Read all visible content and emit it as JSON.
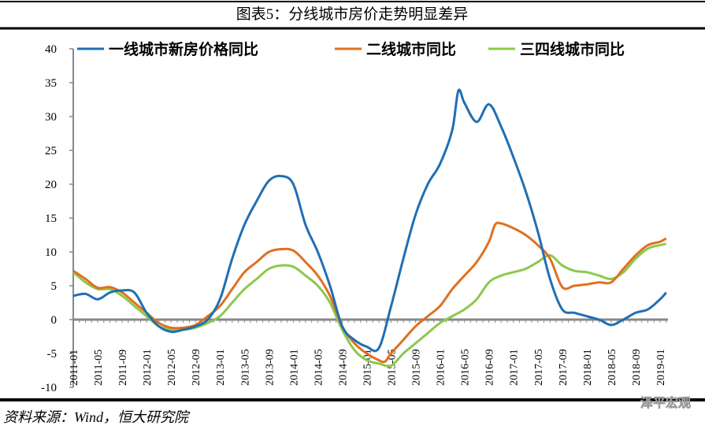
{
  "title": "图表5：分线城市房价走势明显差异",
  "source": "资料来源：Wind，恒大研究院",
  "watermark": "泽平宏观",
  "chart_data": {
    "type": "line",
    "title": "图表5：分线城市房价走势明显差异",
    "xlabel": "",
    "ylabel": "",
    "ylim": [
      -10,
      40
    ],
    "yticks": [
      -10,
      -5,
      0,
      5,
      10,
      15,
      20,
      25,
      30,
      35,
      40
    ],
    "xlim": [
      "2011-01",
      "2019-02"
    ],
    "xticks": [
      "2011-01",
      "2011-05",
      "2011-09",
      "2012-01",
      "2012-05",
      "2012-09",
      "2013-01",
      "2013-05",
      "2013-09",
      "2014-01",
      "2014-05",
      "2014-09",
      "2015-01",
      "2015-05",
      "2015-09",
      "2016-01",
      "2016-05",
      "2016-09",
      "2017-01",
      "2017-05",
      "2017-09",
      "2018-01",
      "2018-05",
      "2018-09",
      "2019-01"
    ],
    "grid": false,
    "legend_position": "top",
    "series": [
      {
        "name": "一线城市新房价格同比",
        "color": "#1f6fb4",
        "points": [
          [
            "2011-01",
            3.5
          ],
          [
            "2011-03",
            3.8
          ],
          [
            "2011-05",
            3.0
          ],
          [
            "2011-07",
            4.0
          ],
          [
            "2011-09",
            4.3
          ],
          [
            "2011-11",
            4.0
          ],
          [
            "2012-01",
            1.0
          ],
          [
            "2012-03",
            -1.0
          ],
          [
            "2012-05",
            -1.8
          ],
          [
            "2012-07",
            -1.5
          ],
          [
            "2012-09",
            -1.0
          ],
          [
            "2012-11",
            0.0
          ],
          [
            "2013-01",
            3.0
          ],
          [
            "2013-03",
            9.0
          ],
          [
            "2013-05",
            14.0
          ],
          [
            "2013-07",
            17.5
          ],
          [
            "2013-09",
            20.5
          ],
          [
            "2013-11",
            21.2
          ],
          [
            "2014-01",
            20.0
          ],
          [
            "2014-03",
            14.0
          ],
          [
            "2014-05",
            10.0
          ],
          [
            "2014-07",
            5.0
          ],
          [
            "2014-09",
            -1.0
          ],
          [
            "2014-11",
            -3.0
          ],
          [
            "2015-01",
            -4.0
          ],
          [
            "2015-03",
            -4.2
          ],
          [
            "2015-05",
            2.0
          ],
          [
            "2015-07",
            9.0
          ],
          [
            "2015-09",
            15.5
          ],
          [
            "2015-11",
            20.0
          ],
          [
            "2016-01",
            23.0
          ],
          [
            "2016-03",
            28.0
          ],
          [
            "2016-04",
            33.8
          ],
          [
            "2016-05",
            32.0
          ],
          [
            "2016-07",
            29.2
          ],
          [
            "2016-09",
            31.8
          ],
          [
            "2016-11",
            28.5
          ],
          [
            "2017-01",
            24.0
          ],
          [
            "2017-03",
            19.0
          ],
          [
            "2017-05",
            13.0
          ],
          [
            "2017-07",
            6.0
          ],
          [
            "2017-09",
            1.5
          ],
          [
            "2017-11",
            1.0
          ],
          [
            "2018-01",
            0.5
          ],
          [
            "2018-03",
            0.0
          ],
          [
            "2018-05",
            -0.8
          ],
          [
            "2018-07",
            0.0
          ],
          [
            "2018-09",
            1.0
          ],
          [
            "2018-11",
            1.5
          ],
          [
            "2019-01",
            3.0
          ],
          [
            "2019-02",
            4.0
          ]
        ]
      },
      {
        "name": "二线城市同比",
        "color": "#e07020",
        "points": [
          [
            "2011-01",
            7.2
          ],
          [
            "2011-03",
            6.0
          ],
          [
            "2011-05",
            4.7
          ],
          [
            "2011-07",
            4.8
          ],
          [
            "2011-09",
            4.0
          ],
          [
            "2011-11",
            2.5
          ],
          [
            "2012-01",
            1.0
          ],
          [
            "2012-03",
            -0.5
          ],
          [
            "2012-05",
            -1.2
          ],
          [
            "2012-07",
            -1.2
          ],
          [
            "2012-09",
            -0.8
          ],
          [
            "2012-11",
            0.5
          ],
          [
            "2013-01",
            2.0
          ],
          [
            "2013-03",
            4.5
          ],
          [
            "2013-05",
            7.0
          ],
          [
            "2013-07",
            8.5
          ],
          [
            "2013-09",
            10.0
          ],
          [
            "2013-11",
            10.4
          ],
          [
            "2014-01",
            10.2
          ],
          [
            "2014-03",
            8.5
          ],
          [
            "2014-05",
            6.5
          ],
          [
            "2014-07",
            3.5
          ],
          [
            "2014-09",
            -1.0
          ],
          [
            "2014-11",
            -3.5
          ],
          [
            "2015-01",
            -5.0
          ],
          [
            "2015-03",
            -6.0
          ],
          [
            "2015-04",
            -6.2
          ],
          [
            "2015-05",
            -5.0
          ],
          [
            "2015-07",
            -3.0
          ],
          [
            "2015-09",
            -1.0
          ],
          [
            "2015-11",
            0.5
          ],
          [
            "2016-01",
            2.0
          ],
          [
            "2016-03",
            4.5
          ],
          [
            "2016-05",
            6.5
          ],
          [
            "2016-07",
            8.5
          ],
          [
            "2016-09",
            11.5
          ],
          [
            "2016-10",
            14.0
          ],
          [
            "2016-11",
            14.2
          ],
          [
            "2017-01",
            13.5
          ],
          [
            "2017-03",
            12.5
          ],
          [
            "2017-05",
            11.0
          ],
          [
            "2017-07",
            9.0
          ],
          [
            "2017-09",
            4.8
          ],
          [
            "2017-11",
            5.0
          ],
          [
            "2018-01",
            5.2
          ],
          [
            "2018-03",
            5.5
          ],
          [
            "2018-05",
            5.5
          ],
          [
            "2018-07",
            7.5
          ],
          [
            "2018-09",
            9.5
          ],
          [
            "2018-11",
            11.0
          ],
          [
            "2019-01",
            11.5
          ],
          [
            "2019-02",
            12.0
          ]
        ]
      },
      {
        "name": "三四线城市同比",
        "color": "#8cc84b",
        "points": [
          [
            "2011-01",
            7.0
          ],
          [
            "2011-03",
            5.5
          ],
          [
            "2011-05",
            4.5
          ],
          [
            "2011-07",
            4.5
          ],
          [
            "2011-09",
            3.5
          ],
          [
            "2011-11",
            2.0
          ],
          [
            "2012-01",
            0.5
          ],
          [
            "2012-03",
            -1.0
          ],
          [
            "2012-05",
            -1.5
          ],
          [
            "2012-07",
            -1.5
          ],
          [
            "2012-09",
            -1.2
          ],
          [
            "2012-11",
            -0.5
          ],
          [
            "2013-01",
            0.5
          ],
          [
            "2013-03",
            2.5
          ],
          [
            "2013-05",
            4.5
          ],
          [
            "2013-07",
            6.0
          ],
          [
            "2013-09",
            7.5
          ],
          [
            "2013-11",
            8.0
          ],
          [
            "2014-01",
            7.8
          ],
          [
            "2014-03",
            6.5
          ],
          [
            "2014-05",
            5.0
          ],
          [
            "2014-07",
            2.5
          ],
          [
            "2014-09",
            -1.5
          ],
          [
            "2014-11",
            -4.5
          ],
          [
            "2015-01",
            -6.0
          ],
          [
            "2015-03",
            -6.5
          ],
          [
            "2015-05",
            -6.8
          ],
          [
            "2015-07",
            -5.0
          ],
          [
            "2015-09",
            -3.5
          ],
          [
            "2015-11",
            -2.0
          ],
          [
            "2016-01",
            -0.5
          ],
          [
            "2016-03",
            0.5
          ],
          [
            "2016-05",
            1.5
          ],
          [
            "2016-07",
            3.0
          ],
          [
            "2016-09",
            5.5
          ],
          [
            "2016-11",
            6.5
          ],
          [
            "2017-01",
            7.0
          ],
          [
            "2017-03",
            7.5
          ],
          [
            "2017-05",
            8.5
          ],
          [
            "2017-07",
            9.5
          ],
          [
            "2017-09",
            8.0
          ],
          [
            "2017-11",
            7.2
          ],
          [
            "2018-01",
            7.0
          ],
          [
            "2018-03",
            6.5
          ],
          [
            "2018-05",
            6.0
          ],
          [
            "2018-07",
            7.0
          ],
          [
            "2018-09",
            9.0
          ],
          [
            "2018-11",
            10.5
          ],
          [
            "2019-01",
            11.0
          ],
          [
            "2019-02",
            11.2
          ]
        ]
      }
    ]
  }
}
